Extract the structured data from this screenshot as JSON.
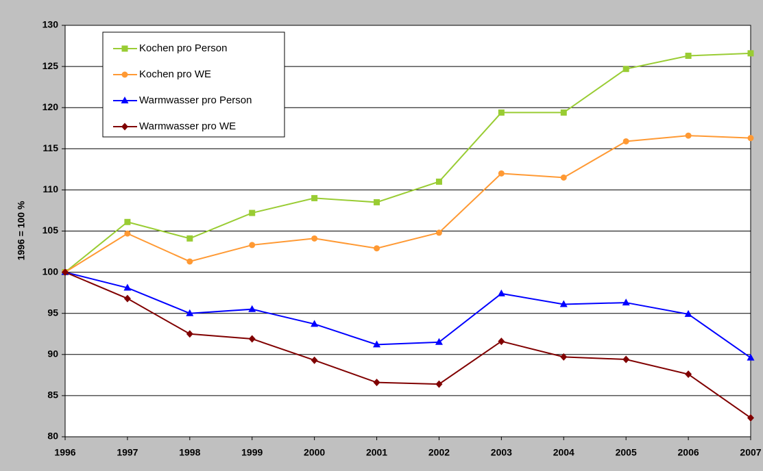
{
  "chart_data": {
    "type": "line",
    "y_label": "1996 = 100 %",
    "categories": [
      "1996",
      "1997",
      "1998",
      "1999",
      "2000",
      "2001",
      "2002",
      "2003",
      "2004",
      "2005",
      "2006",
      "2007"
    ],
    "series": [
      {
        "name": "Kochen pro Person",
        "color": "#99cc33",
        "marker": "square",
        "values": [
          100,
          106.1,
          104.1,
          107.2,
          109.0,
          108.5,
          111.0,
          119.4,
          119.4,
          124.7,
          126.3,
          126.6
        ]
      },
      {
        "name": "Kochen pro WE",
        "color": "#ff9933",
        "marker": "circle",
        "values": [
          100,
          104.7,
          101.3,
          103.3,
          104.1,
          102.9,
          104.8,
          112.0,
          111.5,
          115.9,
          116.6,
          116.3
        ]
      },
      {
        "name": "Warmwasser pro Person",
        "color": "#0000ff",
        "marker": "triangle",
        "values": [
          100,
          98.1,
          95.0,
          95.5,
          93.7,
          91.2,
          91.5,
          97.4,
          96.1,
          96.3,
          94.9,
          89.6
        ]
      },
      {
        "name": "Warmwasser pro WE",
        "color": "#800000",
        "marker": "diamond",
        "values": [
          100,
          96.8,
          92.5,
          91.9,
          89.3,
          86.6,
          86.4,
          91.6,
          89.7,
          89.4,
          87.6,
          82.3
        ]
      }
    ],
    "ylim": [
      80,
      130
    ],
    "yticks": [
      80,
      85,
      90,
      95,
      100,
      105,
      110,
      115,
      120,
      125,
      130
    ],
    "grid": true,
    "legend": "upper left"
  }
}
